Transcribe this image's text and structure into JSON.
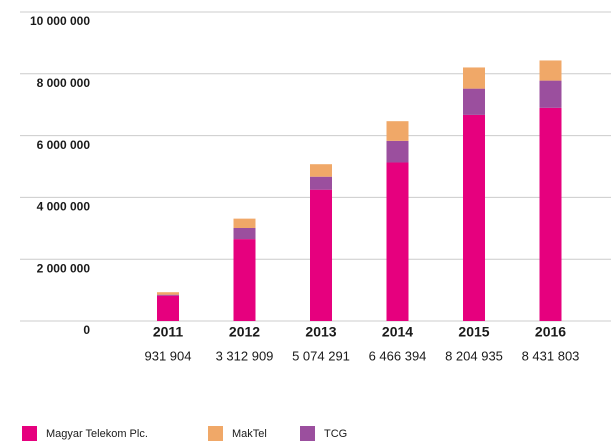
{
  "chart_data": {
    "type": "stacked_bar",
    "categories": [
      "2011",
      "2012",
      "2013",
      "2014",
      "2015",
      "2016"
    ],
    "category_totals": [
      "931 904",
      "3 312 909",
      "5 074 291",
      "6 466 394",
      "8 204 935",
      "8 431 803"
    ],
    "series": [
      {
        "name": "Magyar Telekom Plc.",
        "color": "#e6007e",
        "values": [
          820000,
          2650000,
          4250000,
          5130000,
          6670000,
          6900000
        ]
      },
      {
        "name": "TCG",
        "color": "#9b4f9e",
        "values": [
          31904,
          360000,
          420000,
          700000,
          850000,
          880000
        ]
      },
      {
        "name": "MakTel",
        "color": "#f0a868",
        "values": [
          80000,
          302909,
          404291,
          636394,
          684935,
          651803
        ]
      }
    ],
    "legend_order": [
      0,
      2,
      1
    ],
    "ylim": [
      0,
      10000000
    ],
    "yticks": [
      0,
      {
        "value": 2000000,
        "label": "2 000 000"
      },
      {
        "value": 4000000,
        "label": "4 000 000"
      },
      {
        "value": 6000000,
        "label": "6 000 000"
      },
      {
        "value": 8000000,
        "label": "8 000 000"
      },
      {
        "value": 10000000,
        "label": "10 000 000"
      }
    ],
    "grid": true
  }
}
